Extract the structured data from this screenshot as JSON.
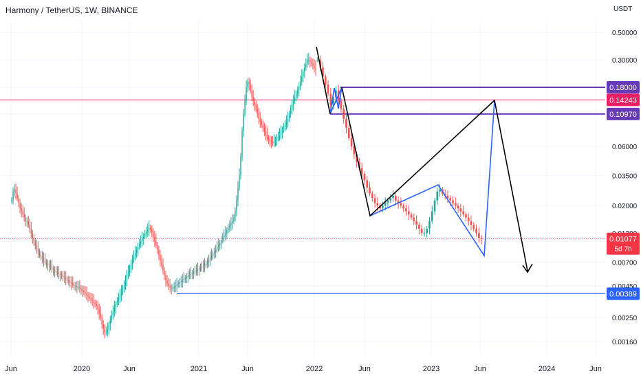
{
  "chart_data": {
    "type": "candlestick",
    "title": "Harmony / TetherUS, 1W, BINANCE",
    "y_unit": "USDT",
    "y_scale": "log",
    "y_ticks": [
      0.5,
      0.3,
      0.18,
      0.1097,
      0.06,
      0.035,
      0.02,
      0.012,
      0.007,
      0.0045,
      0.0025,
      0.0016
    ],
    "y_tick_labels": [
      "0.50000",
      "0.30000",
      "0.18000",
      "0.10970",
      "0.06000",
      "0.03500",
      "0.02000",
      "0.01200",
      "0.00700",
      "0.00450",
      "0.00250",
      "0.00160"
    ],
    "x_tick_labels": [
      "Jun",
      "2020",
      "Jun",
      "2021",
      "Jun",
      "2022",
      "Jun",
      "2023",
      "Jun",
      "2024",
      "Jun"
    ],
    "current_price": "0.01077",
    "countdown": "5d 7h",
    "levels": [
      {
        "label": "0.18000",
        "value": 0.18,
        "color": "#673ab7"
      },
      {
        "label": "0.14243",
        "value": 0.14243,
        "color": "#e91e63"
      },
      {
        "label": "0.10970",
        "value": 0.1097,
        "color": "#673ab7"
      },
      {
        "label": "0.00389",
        "value": 0.00389,
        "color": "#2962ff"
      }
    ],
    "colors": {
      "up": "#26a69a",
      "down": "#ef5350",
      "current": "#f23645",
      "support": "#2962ff",
      "pattern": "#2962ff",
      "trend": "#000000"
    },
    "price_path": [
      0.022,
      0.026,
      0.027,
      0.025,
      0.023,
      0.021,
      0.019,
      0.018,
      0.017,
      0.016,
      0.015,
      0.015,
      0.014,
      0.013,
      0.012,
      0.011,
      0.01,
      0.0095,
      0.009,
      0.0085,
      0.008,
      0.0078,
      0.0075,
      0.0072,
      0.007,
      0.0068,
      0.0066,
      0.0065,
      0.0064,
      0.0062,
      0.006,
      0.0059,
      0.0058,
      0.0057,
      0.0056,
      0.0055,
      0.0054,
      0.0053,
      0.0052,
      0.0051,
      0.005,
      0.0049,
      0.0048,
      0.0047,
      0.0046,
      0.0045,
      0.0045,
      0.0044,
      0.0044,
      0.0043,
      0.0042,
      0.0041,
      0.004,
      0.0039,
      0.0038,
      0.0037,
      0.0036,
      0.0035,
      0.0034,
      0.0033,
      0.0032,
      0.0031,
      0.0029,
      0.0027,
      0.0025,
      0.0022,
      0.002,
      0.0019,
      0.0019,
      0.002,
      0.0022,
      0.0024,
      0.0026,
      0.0028,
      0.003,
      0.0032,
      0.0034,
      0.0036,
      0.0038,
      0.004,
      0.0043,
      0.0046,
      0.005,
      0.0054,
      0.0058,
      0.0063,
      0.0068,
      0.0073,
      0.0078,
      0.0083,
      0.0088,
      0.0093,
      0.0098,
      0.0103,
      0.0108,
      0.0113,
      0.0118,
      0.0123,
      0.0128,
      0.0133,
      0.0128,
      0.012,
      0.0112,
      0.0104,
      0.0096,
      0.0088,
      0.008,
      0.0072,
      0.0066,
      0.006,
      0.0055,
      0.005,
      0.0047,
      0.0045,
      0.0044,
      0.0043,
      0.0043,
      0.0044,
      0.0045,
      0.0046,
      0.0047,
      0.0048,
      0.0049,
      0.005,
      0.0051,
      0.0052,
      0.0053,
      0.0054,
      0.0055,
      0.0056,
      0.0057,
      0.0058,
      0.0059,
      0.006,
      0.0061,
      0.0062,
      0.0063,
      0.0064,
      0.0065,
      0.0066,
      0.0068,
      0.007,
      0.0073,
      0.0076,
      0.0079,
      0.0082,
      0.0085,
      0.0088,
      0.0092,
      0.0096,
      0.01,
      0.0105,
      0.011,
      0.0115,
      0.012,
      0.0126,
      0.0132,
      0.0138,
      0.0144,
      0.015,
      0.016,
      0.018,
      0.022,
      0.028,
      0.035,
      0.05,
      0.08,
      0.11,
      0.14,
      0.18,
      0.2,
      0.19,
      0.17,
      0.15,
      0.14,
      0.13,
      0.12,
      0.11,
      0.1,
      0.095,
      0.09,
      0.085,
      0.08,
      0.075,
      0.07,
      0.068,
      0.066,
      0.065,
      0.064,
      0.066,
      0.068,
      0.07,
      0.072,
      0.075,
      0.078,
      0.082,
      0.086,
      0.09,
      0.095,
      0.1,
      0.11,
      0.12,
      0.13,
      0.14,
      0.15,
      0.16,
      0.17,
      0.18,
      0.2,
      0.22,
      0.24,
      0.26,
      0.28,
      0.3,
      0.3,
      0.29,
      0.28,
      0.27,
      0.26,
      0.25
    ]
  }
}
